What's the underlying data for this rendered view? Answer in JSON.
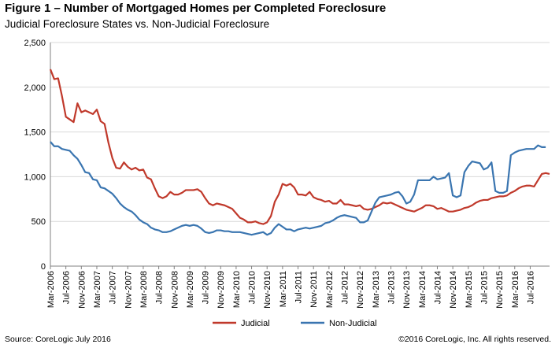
{
  "title": "Figure 1 – Number of Mortgaged Homes per Completed Foreclosure",
  "subtitle": "Judicial Foreclosure States vs. Non-Judicial Foreclosure",
  "footer": {
    "source": "Source: CoreLogic July 2016",
    "copyright": "©2016 CoreLogic, Inc. All rights reserved."
  },
  "chart_data": {
    "type": "line",
    "x_start": "Mar-2006",
    "x_end": "Jul-2016",
    "x_frequency": "monthly",
    "x_tick_labels": [
      "Mar-2006",
      "Jul-2006",
      "Nov-2006",
      "Mar-2007",
      "Jul-2007",
      "Nov-2007",
      "Mar-2008",
      "Jul-2008",
      "Nov-2008",
      "Mar-2009",
      "Jul-2009",
      "Nov-2009",
      "Mar-2010",
      "Jul-2010",
      "Nov-2010",
      "Mar-2011",
      "Jul-2011",
      "Nov-2011",
      "Mar-2012",
      "Jul-2012",
      "Nov-2012",
      "Mar-2013",
      "Jul-2013",
      "Nov-2013",
      "Mar-2014",
      "Jul-2014",
      "Nov-2014",
      "Mar-2015",
      "Jul-2015",
      "Nov-2015",
      "Mar-2016",
      "Jul-2016"
    ],
    "y_ticks": [
      "0",
      "500",
      "1,000",
      "1,500",
      "2,000",
      "2,500"
    ],
    "ylim": [
      0,
      2500
    ],
    "grid": "horizontal",
    "legend_position": "bottom",
    "series": [
      {
        "name": "Judicial",
        "color": "#c0392b",
        "values": [
          2200,
          2090,
          2100,
          1900,
          1670,
          1640,
          1610,
          1820,
          1720,
          1740,
          1720,
          1700,
          1750,
          1620,
          1590,
          1380,
          1210,
          1100,
          1090,
          1160,
          1110,
          1080,
          1100,
          1070,
          1080,
          990,
          970,
          870,
          780,
          760,
          780,
          830,
          800,
          800,
          820,
          850,
          850,
          850,
          860,
          830,
          760,
          700,
          680,
          700,
          690,
          680,
          660,
          640,
          590,
          540,
          520,
          490,
          490,
          500,
          480,
          470,
          490,
          560,
          720,
          800,
          920,
          900,
          920,
          880,
          800,
          800,
          790,
          830,
          770,
          750,
          740,
          720,
          730,
          700,
          700,
          740,
          690,
          690,
          680,
          670,
          680,
          640,
          630,
          640,
          660,
          680,
          710,
          700,
          710,
          690,
          670,
          650,
          630,
          620,
          610,
          630,
          650,
          680,
          680,
          670,
          640,
          650,
          630,
          610,
          610,
          620,
          630,
          650,
          660,
          680,
          710,
          730,
          740,
          740,
          760,
          770,
          780,
          780,
          790,
          820,
          840,
          870,
          890,
          900,
          900,
          890,
          960,
          1030,
          1040,
          1030
        ]
      },
      {
        "name": "Non-Judicial",
        "color": "#3a75b0",
        "values": [
          1390,
          1340,
          1340,
          1310,
          1300,
          1290,
          1240,
          1200,
          1130,
          1050,
          1040,
          970,
          960,
          880,
          870,
          840,
          810,
          760,
          700,
          660,
          630,
          610,
          570,
          520,
          490,
          470,
          430,
          410,
          400,
          380,
          380,
          390,
          410,
          430,
          450,
          460,
          450,
          460,
          450,
          420,
          380,
          370,
          380,
          400,
          400,
          390,
          390,
          380,
          380,
          380,
          370,
          360,
          350,
          360,
          370,
          380,
          350,
          370,
          430,
          470,
          440,
          410,
          410,
          390,
          410,
          420,
          430,
          420,
          430,
          440,
          450,
          480,
          490,
          510,
          540,
          560,
          570,
          560,
          550,
          540,
          490,
          490,
          510,
          610,
          710,
          770,
          780,
          790,
          800,
          820,
          830,
          780,
          700,
          720,
          800,
          960,
          960,
          960,
          960,
          1000,
          970,
          980,
          990,
          1040,
          790,
          770,
          790,
          1050,
          1120,
          1170,
          1160,
          1150,
          1080,
          1100,
          1160,
          840,
          820,
          820,
          840,
          1240,
          1270,
          1290,
          1300,
          1310,
          1310,
          1310,
          1350,
          1330,
          1330
        ]
      }
    ]
  }
}
